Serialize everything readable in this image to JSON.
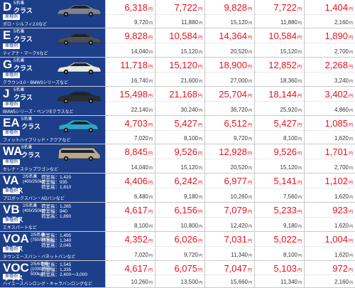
{
  "yen_unit": "円",
  "rows": [
    {
      "code": "D",
      "sub": "",
      "cap": "5名乗",
      "word": "クラス",
      "badge": "車種例",
      "models": "ポロ・シルフィ2.0など",
      "specs": "",
      "car": "sedan",
      "car_color": "#7a8590",
      "prices": [
        "6,318",
        "7,722",
        "9,828",
        "7,722",
        "1,404"
      ],
      "sub_prices": [
        "9,720",
        "11,880",
        "15,120",
        "11,880",
        "2,160"
      ]
    },
    {
      "code": "E",
      "sub": "",
      "cap": "5名乗",
      "word": "クラス",
      "badge": "車種例",
      "models": "ティアナ・マークXなど",
      "specs": "",
      "car": "sedan",
      "car_color": "#4b4f56",
      "prices": [
        "9,828",
        "10,584",
        "14,364",
        "10,584",
        "1,890"
      ],
      "sub_prices": [
        "14,040",
        "15,120",
        "20,520",
        "15,120",
        "2,700"
      ]
    },
    {
      "code": "G",
      "sub": "",
      "cap": "5名乗",
      "word": "クラス",
      "badge": "車種例",
      "models": "クラウン3.0・BMW3シリーズなど",
      "specs": "",
      "car": "sedan",
      "car_color": "#e8e8e8",
      "prices": [
        "11,718",
        "15,120",
        "18,900",
        "12,852",
        "2,268"
      ],
      "sub_prices": [
        "16,740",
        "21,600",
        "27,000",
        "18,360",
        "3,240"
      ]
    },
    {
      "code": "J",
      "sub": "",
      "cap": "5名乗",
      "word": "クラス",
      "badge": "車種例",
      "models": "BMW5シリーズ・ベンツEクラスなど",
      "specs": "",
      "car": "sedan",
      "car_color": "#2a2d33",
      "prices": [
        "15,498",
        "21,168",
        "25,704",
        "18,144",
        "3,402"
      ],
      "sub_prices": [
        "22,140",
        "30,240",
        "36,720",
        "25,920",
        "4,860"
      ]
    },
    {
      "code": "EA",
      "sub": "",
      "cap": "5名乗",
      "word": "クラス",
      "badge": "車種例",
      "models": "フィットハイブリッド・アクアなど",
      "specs": "",
      "car": "hatch",
      "car_color": "#2aa7c9",
      "prices": [
        "4,703",
        "5,427",
        "6,512",
        "5,427",
        "1,085"
      ],
      "sub_prices": [
        "7,020",
        "8,100",
        "9,720",
        "8,100",
        "1,620"
      ]
    },
    {
      "code": "WA",
      "sub": "",
      "cap": "8名乗",
      "word": "クラス",
      "badge": "車種例",
      "models": "セレナ・ステップワゴンなど",
      "specs": "",
      "car": "van",
      "car_color": "#b9a98c",
      "prices": [
        "8,845",
        "9,526",
        "12,928",
        "9,526",
        "1,701"
      ],
      "sub_prices": [
        "14,040",
        "15,120",
        "20,520",
        "15,120",
        "2,700"
      ]
    },
    {
      "code": "VA",
      "sub": "クラス",
      "cap": "2/5名乗\n(400/250kg)",
      "word": "",
      "badge": "車種例",
      "models": "プロボックスバン・ADバンなど",
      "specs": "荷室長：1,420\n荷室幅：935\n荷室高：1,810",
      "car": "",
      "car_color": "",
      "prices": [
        "4,406",
        "6,242",
        "6,977",
        "5,141",
        "1,102"
      ],
      "sub_prices": [
        "6,480",
        "9,180",
        "10,260",
        "7,560",
        "1,620"
      ]
    },
    {
      "code": "VB",
      "sub": "クラス",
      "cap": "2/5名乗\n(400/250kg)",
      "word": "",
      "badge": "車種例",
      "models": "エキスパートなど",
      "specs": "荷室長：1,285\n荷室幅：940\n荷室高：1,890",
      "car": "",
      "car_color": "",
      "prices": [
        "4,617",
        "6,156",
        "7,079",
        "5,233",
        "923"
      ],
      "sub_prices": [
        "8,100",
        "10,800",
        "12,420",
        "9,180",
        "1,620"
      ]
    },
    {
      "code": "VOA",
      "sub": "クラス",
      "cap": "2/5名乗\n(750/500kg)",
      "word": "",
      "badge": "車種例",
      "models": "タウンエースバン・バネットバンなど",
      "specs": "荷室長：1,495\n荷室幅：1,340\n荷室高：2,045",
      "car": "",
      "car_color": "",
      "prices": [
        "4,352",
        "6,026",
        "7,031",
        "5,022",
        "1,004"
      ],
      "sub_prices": [
        "7,020",
        "9,720",
        "11,340",
        "8,100",
        "1,620"
      ]
    },
    {
      "code": "VOC",
      "sub": "クラス",
      "cap": "2/5/6名乗\n(1000/750/\n500kg)",
      "word": "",
      "badge": "車種例",
      "models": "ハイエースバンロング・キャラバンロングなど",
      "specs": "荷室長：1,545\n荷室幅：1,335\n荷室高：2,400～3,000",
      "car": "",
      "car_color": "",
      "prices": [
        "4,617",
        "6,075",
        "7,047",
        "5,103",
        "972"
      ],
      "sub_prices": [
        "10,260",
        "13,500",
        "15,660",
        "11,340",
        "2,160"
      ]
    }
  ]
}
